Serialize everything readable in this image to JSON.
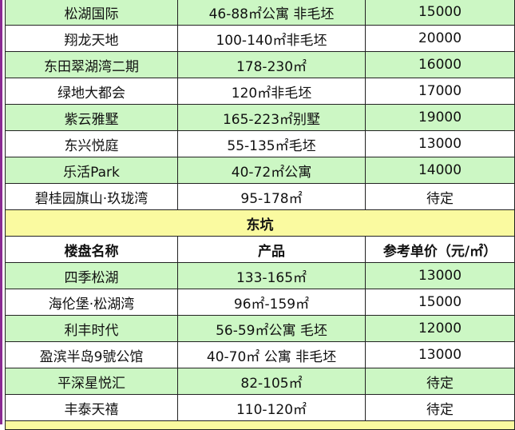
{
  "colors": {
    "green_row": "#ccf7c4",
    "section": "#fafaa0",
    "border_accent": "#8a2a92"
  },
  "rows_top": [
    {
      "name": "松湖国际",
      "product": "46-88㎡公寓 非毛坯",
      "price": "15000"
    },
    {
      "name": "翔龙天地",
      "product": "100-140㎡非毛坯",
      "price": "20000"
    },
    {
      "name": "东田翠湖湾二期",
      "product": "178-230㎡",
      "price": "16000"
    },
    {
      "name": "绿地大都会",
      "product": "120㎡非毛坯",
      "price": "17000"
    },
    {
      "name": "紫云雅墅",
      "product": "165-223㎡别墅",
      "price": "19000"
    },
    {
      "name": "东兴悦庭",
      "product": "55-135㎡毛坯",
      "price": "13000"
    },
    {
      "name": "乐活Park",
      "product": "40-72㎡公寓",
      "price": "14000"
    },
    {
      "name": "碧桂园旗山·玖珑湾",
      "product": "95-178㎡",
      "price": "待定"
    }
  ],
  "section": {
    "title": "东坑",
    "headers": [
      "楼盘名称",
      "产品",
      "参考单价（元/㎡）"
    ]
  },
  "rows_section": [
    {
      "name": "四季松湖",
      "product": "133-165㎡",
      "price": "13000"
    },
    {
      "name": "海伦堡·松湖湾",
      "product": "96㎡-159㎡",
      "price": "15000"
    },
    {
      "name": "利丰时代",
      "product": "56-59㎡公寓 毛坯",
      "price": "12000"
    },
    {
      "name": "盈滨半岛9號公馆",
      "product": "40-70㎡ 公寓 非毛坯",
      "price": "13000"
    },
    {
      "name": "平深星悦汇",
      "product": "82-105㎡",
      "price": "待定"
    },
    {
      "name": "丰泰天禧",
      "product": "110-120㎡",
      "price": "待定"
    }
  ]
}
